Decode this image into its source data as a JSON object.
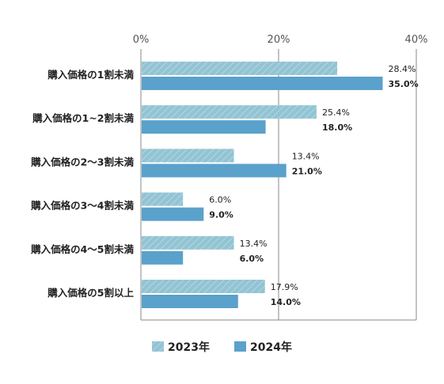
{
  "chart_data": {
    "type": "bar",
    "orientation": "horizontal",
    "categories": [
      "購入価格の1割未満",
      "購入価格の1~2割未満",
      "購入価格の2〜3割未満",
      "購入価格の3〜4割未満",
      "購入価格の4〜5割未満",
      "購入価格の5割以上"
    ],
    "series": [
      {
        "name": "2023年",
        "values": [
          28.4,
          25.4,
          13.4,
          6.0,
          13.4,
          17.9
        ],
        "labels": [
          "28.4%",
          "25.4%",
          "13.4%",
          "6.0%",
          "13.4%",
          "17.9%"
        ],
        "color": "#92c4d3",
        "pattern": "diagonal-hatch"
      },
      {
        "name": "2024年",
        "values": [
          35.0,
          18.0,
          21.0,
          9.0,
          6.0,
          14.0
        ],
        "labels": [
          "35.0%",
          "18.0%",
          "21.0%",
          "9.0%",
          "6.0%",
          "14.0%"
        ],
        "color": "#5aa1cb"
      }
    ],
    "xlim": [
      0,
      40
    ],
    "xticks": [
      0,
      20,
      40
    ],
    "xtick_labels": [
      "0%",
      "20%",
      "40%"
    ],
    "title": "",
    "xlabel": "",
    "ylabel": "",
    "grid": true,
    "legend": "bottom"
  }
}
